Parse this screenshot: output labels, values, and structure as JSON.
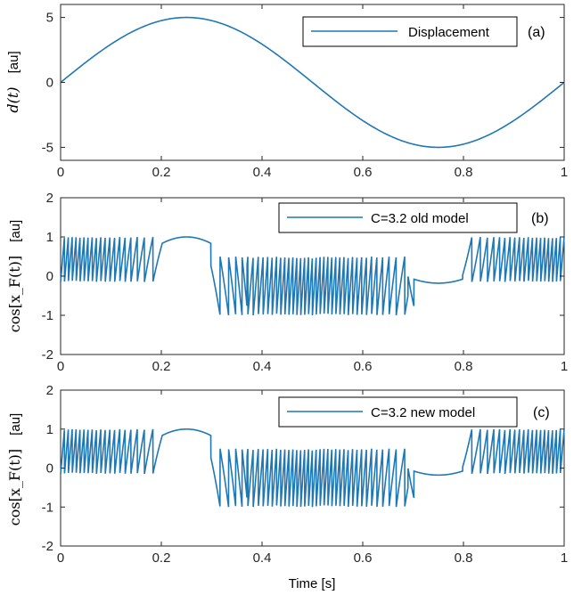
{
  "colors": {
    "line": "#1f77b4",
    "axes": "#262626"
  },
  "chart_data": [
    {
      "type": "line",
      "panel": "(a)",
      "series": [
        {
          "name": "Displacement",
          "function": "5*sin(2*pi*t)"
        }
      ],
      "xlim": [
        0,
        1
      ],
      "ylim": [
        -6,
        6
      ],
      "xticks": [
        "0",
        "0.2",
        "0.4",
        "0.6",
        "0.8",
        "1"
      ],
      "yticks": [
        "5",
        "0",
        "-5"
      ],
      "ylabel": "d(t)",
      "ylabel_unit": "[au]",
      "legend": "top-right",
      "grid": false
    },
    {
      "type": "line",
      "panel": "(b)",
      "series": [
        {
          "name": "C=3.2 old model",
          "function": "cos(x_F(t))",
          "C": 3.2
        }
      ],
      "xlim": [
        0,
        1
      ],
      "ylim": [
        -2,
        2
      ],
      "xticks": [
        "0",
        "0.2",
        "0.4",
        "0.6",
        "0.8",
        "1"
      ],
      "yticks": [
        "2",
        "1",
        "0",
        "-1",
        "-2"
      ],
      "ylabel": "cos[x_F(t)]",
      "ylabel_unit": "[au]",
      "legend": "top-right",
      "grid": false
    },
    {
      "type": "line",
      "panel": "(c)",
      "series": [
        {
          "name": "C=3.2 new model",
          "function": "cos(x_F(t))",
          "C": 3.2
        }
      ],
      "xlim": [
        0,
        1
      ],
      "ylim": [
        -2,
        2
      ],
      "xticks": [
        "0",
        "0.2",
        "0.4",
        "0.6",
        "0.8",
        "1"
      ],
      "yticks": [
        "2",
        "1",
        "0",
        "-1",
        "-2"
      ],
      "ylabel": "cos[x_F(t)]",
      "ylabel_unit": "[au]",
      "xlabel": "Time [s]",
      "legend": "top-right",
      "grid": false
    }
  ]
}
